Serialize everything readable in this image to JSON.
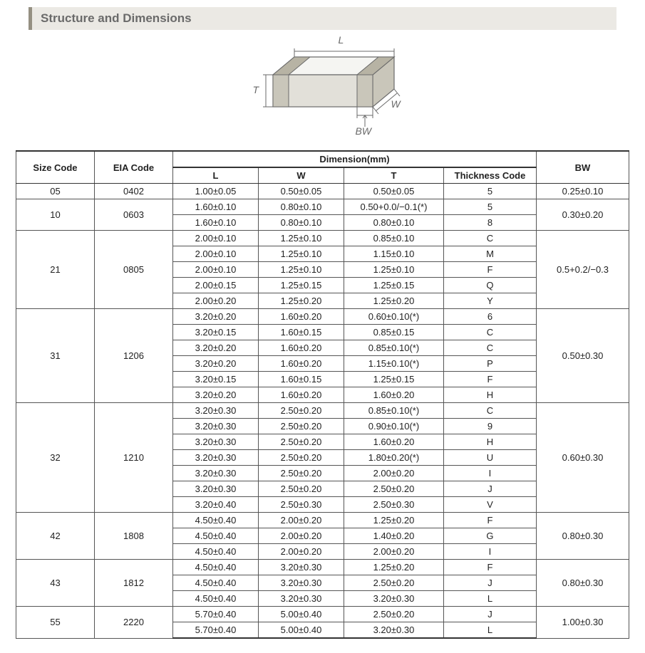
{
  "section_title": "Structure and Dimensions",
  "diagram": {
    "labels": {
      "L": "L",
      "W": "W",
      "T": "T",
      "BW": "BW"
    },
    "stroke": "#6a6a6a",
    "fill_light": "#f5f5f2",
    "fill_mid": "#e2e0d9",
    "fill_dark": "#c9c6ba"
  },
  "header": {
    "size_code": "Size Code",
    "eia_code": "EIA Code",
    "dimension": "Dimension(mm)",
    "L": "L",
    "W": "W",
    "T": "T",
    "thickness_code": "Thickness  Code",
    "BW": "BW"
  },
  "groups": [
    {
      "size_code": "05",
      "eia_code": "0402",
      "bw": "0.25±0.10",
      "rows": [
        {
          "L": "1.00±0.05",
          "W": "0.50±0.05",
          "T": "0.50±0.05",
          "TC": "5"
        }
      ]
    },
    {
      "size_code": "10",
      "eia_code": "0603",
      "bw": "0.30±0.20",
      "rows": [
        {
          "L": "1.60±0.10",
          "W": "0.80±0.10",
          "T": "0.50+0.0/−0.1(*)",
          "TC": "5"
        },
        {
          "L": "1.60±0.10",
          "W": "0.80±0.10",
          "T": "0.80±0.10",
          "TC": "8"
        }
      ]
    },
    {
      "size_code": "21",
      "eia_code": "0805",
      "bw": "0.5+0.2/−0.3",
      "rows": [
        {
          "L": "2.00±0.10",
          "W": "1.25±0.10",
          "T": "0.85±0.10",
          "TC": "C"
        },
        {
          "L": "2.00±0.10",
          "W": "1.25±0.10",
          "T": "1.15±0.10",
          "TC": "M"
        },
        {
          "L": "2.00±0.10",
          "W": "1.25±0.10",
          "T": "1.25±0.10",
          "TC": "F"
        },
        {
          "L": "2.00±0.15",
          "W": "1.25±0.15",
          "T": "1.25±0.15",
          "TC": "Q"
        },
        {
          "L": "2.00±0.20",
          "W": "1.25±0.20",
          "T": "1.25±0.20",
          "TC": "Y"
        }
      ]
    },
    {
      "size_code": "31",
      "eia_code": "1206",
      "bw": "0.50±0.30",
      "rows": [
        {
          "L": "3.20±0.20",
          "W": "1.60±0.20",
          "T": "0.60±0.10(*)",
          "TC": "6"
        },
        {
          "L": "3.20±0.15",
          "W": "1.60±0.15",
          "T": "0.85±0.15",
          "TC": "C"
        },
        {
          "L": "3.20±0.20",
          "W": "1.60±0.20",
          "T": "0.85±0.10(*)",
          "TC": "C"
        },
        {
          "L": "3.20±0.20",
          "W": "1.60±0.20",
          "T": "1.15±0.10(*)",
          "TC": "P"
        },
        {
          "L": "3.20±0.15",
          "W": "1.60±0.15",
          "T": "1.25±0.15",
          "TC": "F"
        },
        {
          "L": "3.20±0.20",
          "W": "1.60±0.20",
          "T": "1.60±0.20",
          "TC": "H"
        }
      ]
    },
    {
      "size_code": "32",
      "eia_code": "1210",
      "bw": "0.60±0.30",
      "rows": [
        {
          "L": "3.20±0.30",
          "W": "2.50±0.20",
          "T": "0.85±0.10(*)",
          "TC": "C"
        },
        {
          "L": "3.20±0.30",
          "W": "2.50±0.20",
          "T": "0.90±0.10(*)",
          "TC": "9"
        },
        {
          "L": "3.20±0.30",
          "W": "2.50±0.20",
          "T": "1.60±0.20",
          "TC": "H"
        },
        {
          "L": "3.20±0.30",
          "W": "2.50±0.20",
          "T": "1.80±0.20(*)",
          "TC": "U"
        },
        {
          "L": "3.20±0.30",
          "W": "2.50±0.20",
          "T": "2.00±0.20",
          "TC": "I"
        },
        {
          "L": "3.20±0.30",
          "W": "2.50±0.20",
          "T": "2.50±0.20",
          "TC": "J"
        },
        {
          "L": "3.20±0.40",
          "W": "2.50±0.30",
          "T": "2.50±0.30",
          "TC": "V"
        }
      ]
    },
    {
      "size_code": "42",
      "eia_code": "1808",
      "bw": "0.80±0.30",
      "rows": [
        {
          "L": "4.50±0.40",
          "W": "2.00±0.20",
          "T": "1.25±0.20",
          "TC": "F"
        },
        {
          "L": "4.50±0.40",
          "W": "2.00±0.20",
          "T": "1.40±0.20",
          "TC": "G"
        },
        {
          "L": "4.50±0.40",
          "W": "2.00±0.20",
          "T": "2.00±0.20",
          "TC": "I"
        }
      ]
    },
    {
      "size_code": "43",
      "eia_code": "1812",
      "bw": "0.80±0.30",
      "rows": [
        {
          "L": "4.50±0.40",
          "W": "3.20±0.30",
          "T": "1.25±0.20",
          "TC": "F"
        },
        {
          "L": "4.50±0.40",
          "W": "3.20±0.30",
          "T": "2.50±0.20",
          "TC": "J"
        },
        {
          "L": "4.50±0.40",
          "W": "3.20±0.30",
          "T": "3.20±0.30",
          "TC": "L"
        }
      ]
    },
    {
      "size_code": "55",
      "eia_code": "2220",
      "bw": "1.00±0.30",
      "rows": [
        {
          "L": "5.70±0.40",
          "W": "5.00±0.40",
          "T": "2.50±0.20",
          "TC": "J"
        },
        {
          "L": "5.70±0.40",
          "W": "5.00±0.40",
          "T": "3.20±0.30",
          "TC": "L"
        }
      ]
    }
  ]
}
